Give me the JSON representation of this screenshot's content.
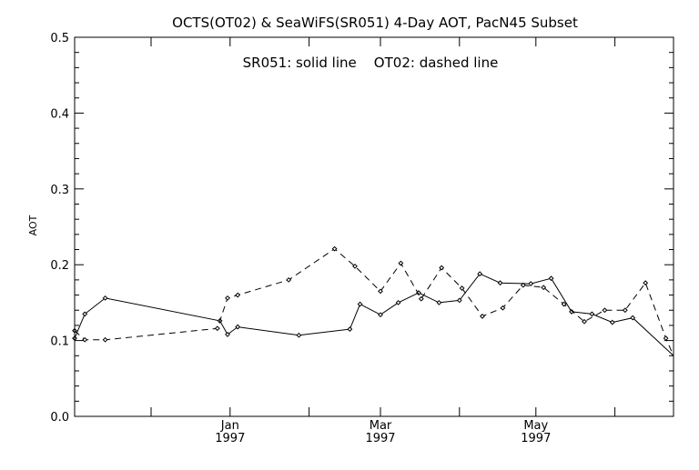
{
  "chart_data": {
    "type": "line",
    "title": "OCTS(OT02) & SeaWiFS(SR051) 4-Day AOT, PacN45 Subset",
    "annotation": "SR051: solid line    OT02: dashed line",
    "ylabel": "AOT",
    "xlabel": "",
    "ylim": [
      0.0,
      0.5
    ],
    "yticks": [
      "0.0",
      "0.1",
      "0.2",
      "0.3",
      "0.4",
      "0.5"
    ],
    "ytick_values": [
      0.0,
      0.1,
      0.2,
      0.3,
      0.4,
      0.5
    ],
    "xlim": [
      "1996-11-01",
      "1997-06-24"
    ],
    "xticks": [
      {
        "date": "1996-12-01",
        "line1": "",
        "line2": ""
      },
      {
        "date": "1997-01-01",
        "line1": "Jan",
        "line2": "1997"
      },
      {
        "date": "1997-02-01",
        "line1": "",
        "line2": ""
      },
      {
        "date": "1997-03-01",
        "line1": "Mar",
        "line2": "1997"
      },
      {
        "date": "1997-04-01",
        "line1": "",
        "line2": ""
      },
      {
        "date": "1997-05-01",
        "line1": "May",
        "line2": "1997"
      },
      {
        "date": "1997-06-01",
        "line1": "",
        "line2": ""
      }
    ],
    "grid": false,
    "series": [
      {
        "name": "SR051",
        "style": "solid",
        "x": [
          "1996-11-01",
          "1996-11-05",
          "1996-11-13",
          "1996-12-28",
          "1996-12-31",
          "1997-01-04",
          "1997-01-28",
          "1997-02-17",
          "1997-02-21",
          "1997-02-29",
          "1997-03-08",
          "1997-03-16",
          "1997-03-24",
          "1997-04-01",
          "1997-04-09",
          "1997-04-17",
          "1997-04-29",
          "1997-05-07",
          "1997-05-15",
          "1997-05-23",
          "1997-05-31",
          "1997-06-08",
          "1997-06-24"
        ],
        "y": [
          0.103,
          0.135,
          0.156,
          0.126,
          0.108,
          0.118,
          0.107,
          0.115,
          0.148,
          0.134,
          0.15,
          0.163,
          0.15,
          0.153,
          0.188,
          0.176,
          0.175,
          0.182,
          0.138,
          0.135,
          0.124,
          0.13,
          0.08
        ]
      },
      {
        "name": "OT02",
        "style": "dashed",
        "x": [
          "1996-11-01",
          "1996-11-05",
          "1996-11-13",
          "1996-12-27",
          "1996-12-31",
          "1997-01-04",
          "1997-01-24",
          "1997-02-11",
          "1997-02-19",
          "1997-03-01",
          "1997-03-09",
          "1997-03-17",
          "1997-03-25",
          "1997-04-02",
          "1997-04-10",
          "1997-04-18",
          "1997-04-26",
          "1997-05-04",
          "1997-05-12",
          "1997-05-20",
          "1997-05-28",
          "1997-06-05",
          "1997-06-13",
          "1997-06-21",
          "1997-06-24"
        ],
        "y": [
          0.113,
          0.101,
          0.101,
          0.116,
          0.156,
          0.16,
          0.18,
          0.221,
          0.198,
          0.165,
          0.202,
          0.155,
          0.196,
          0.169,
          0.132,
          0.143,
          0.173,
          0.17,
          0.148,
          0.125,
          0.14,
          0.14,
          0.176,
          0.103,
          0.08
        ]
      }
    ]
  }
}
